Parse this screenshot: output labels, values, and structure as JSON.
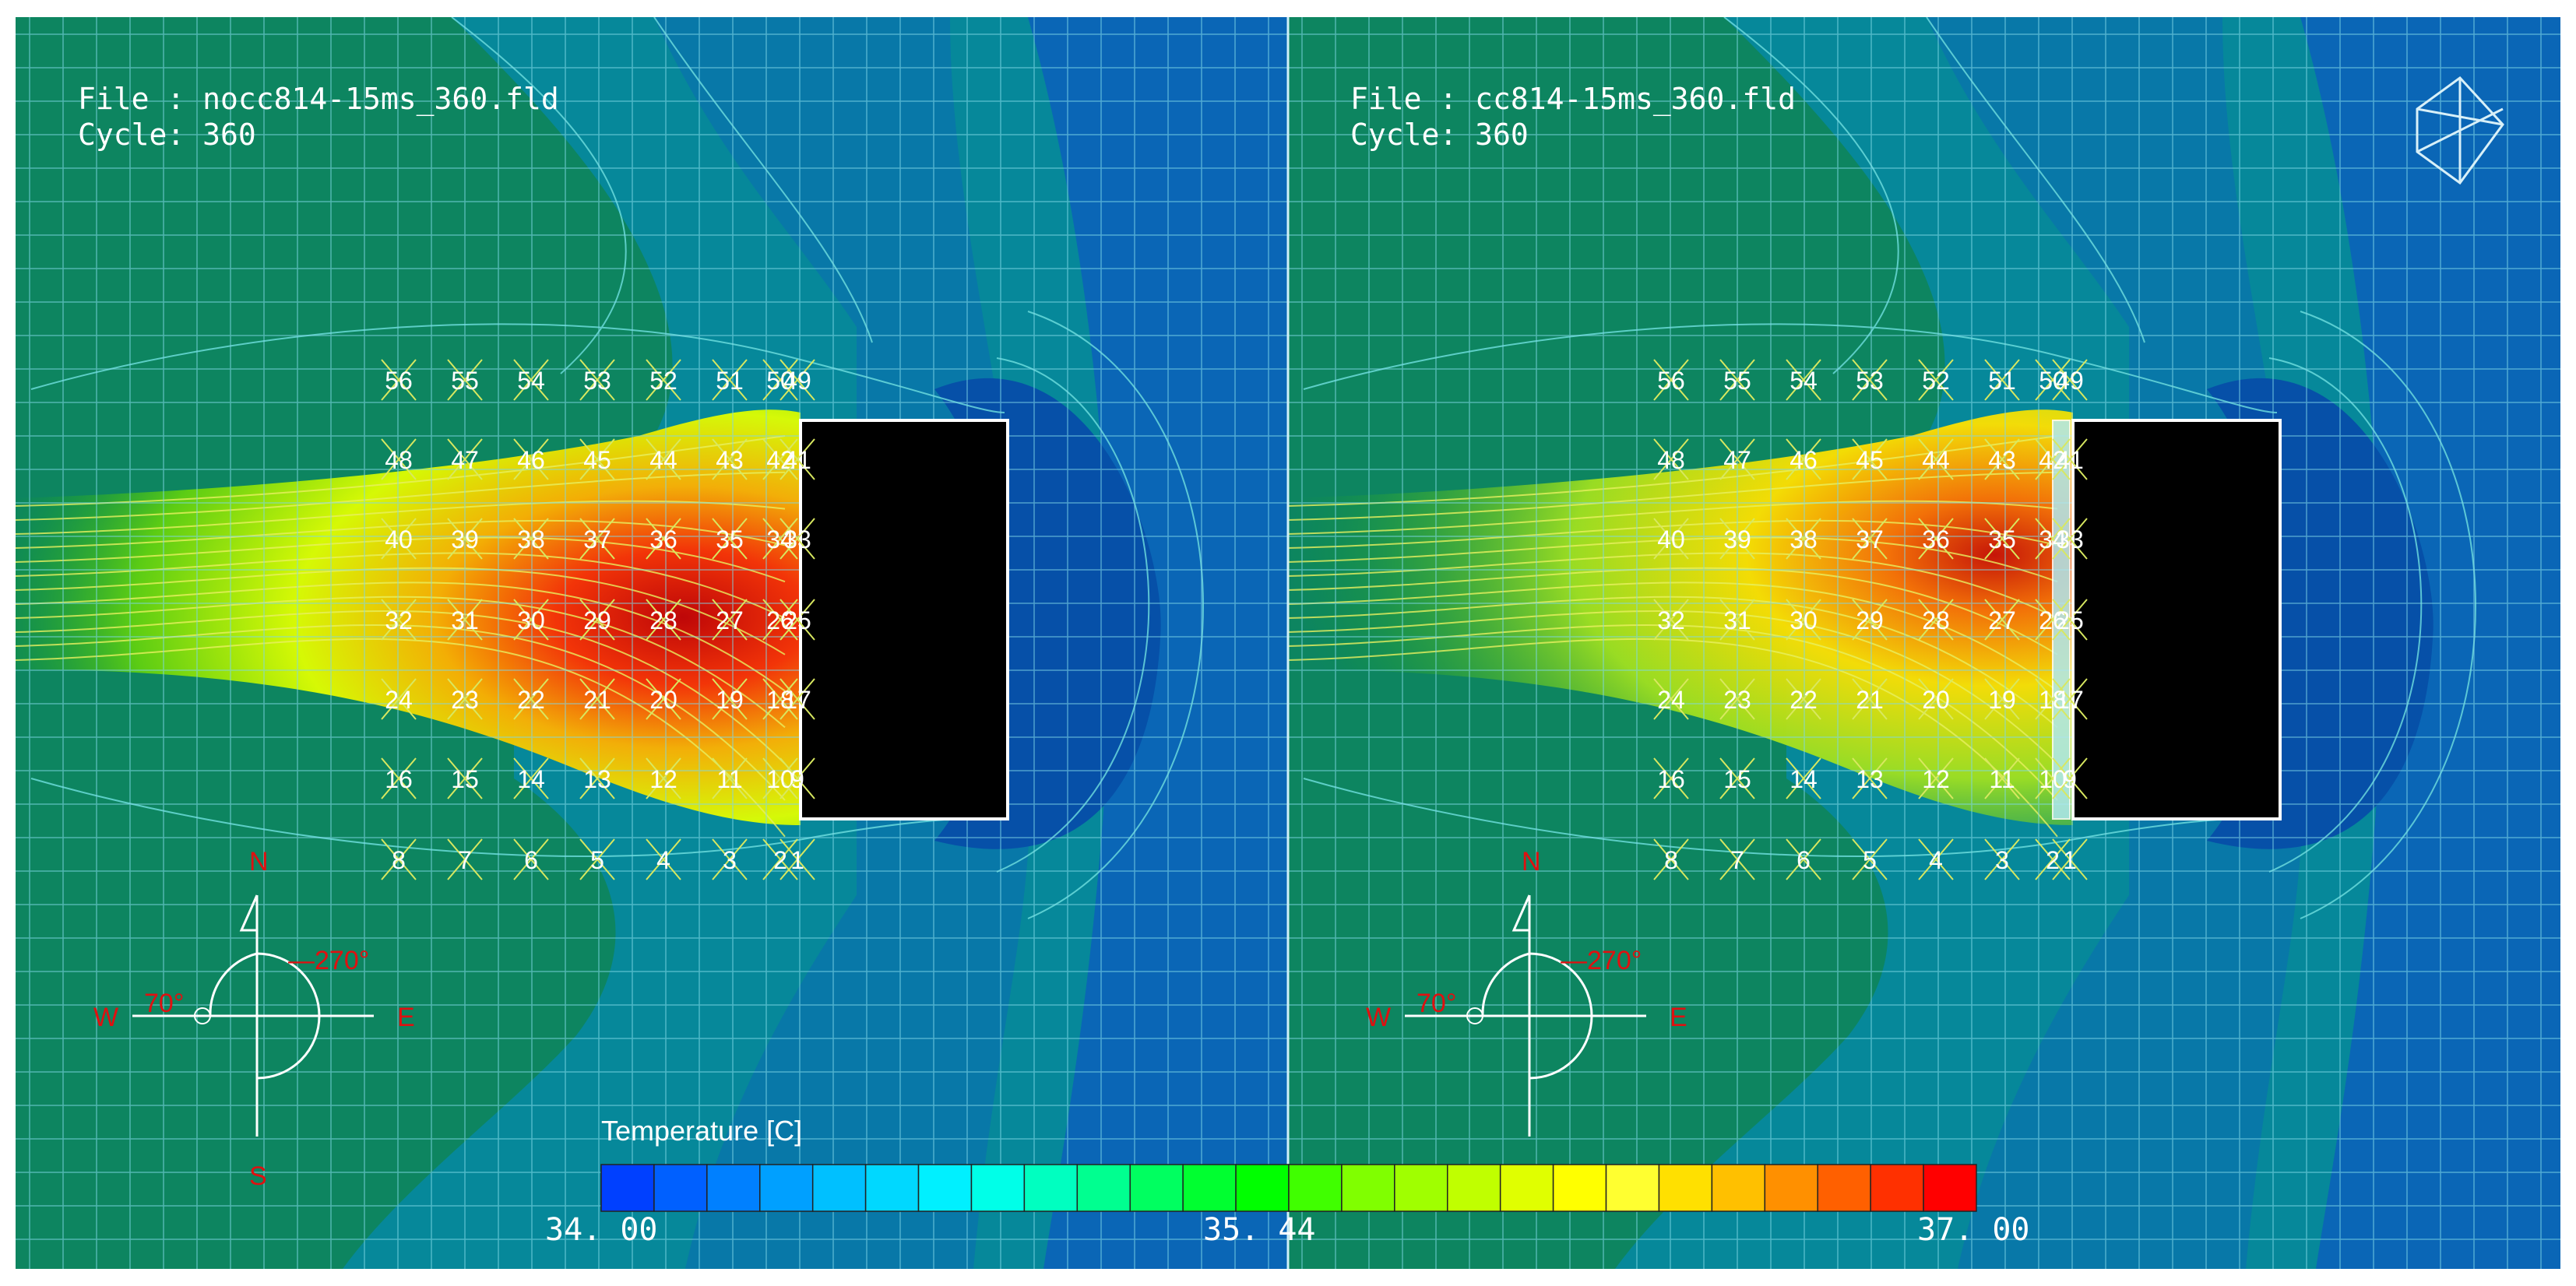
{
  "panels": [
    {
      "id": "left",
      "file_line": "File : nocc814-15ms_360.fld",
      "cycle_line": "Cycle: 360",
      "has_facade_layer": false,
      "has_axis_icon": false
    },
    {
      "id": "right",
      "file_line": "File : cc814-15ms_360.fld",
      "cycle_line": "Cycle: 360",
      "has_facade_layer": true,
      "has_axis_icon": true
    }
  ],
  "probe_grid": {
    "rows": [
      [
        "56",
        "55",
        "54",
        "53",
        "52",
        "51",
        "50",
        "49"
      ],
      [
        "48",
        "47",
        "46",
        "45",
        "44",
        "43",
        "42",
        "41"
      ],
      [
        "40",
        "39",
        "38",
        "37",
        "36",
        "35",
        "34",
        "33"
      ],
      [
        "32",
        "31",
        "30",
        "29",
        "28",
        "27",
        "26",
        "25"
      ],
      [
        "24",
        "23",
        "22",
        "21",
        "20",
        "19",
        "18",
        "17"
      ],
      [
        "16",
        "15",
        "14",
        "13",
        "12",
        "11",
        "10",
        "9"
      ],
      [
        "8",
        "7",
        "6",
        "5",
        "4",
        "3",
        "2",
        "1"
      ]
    ]
  },
  "compass": {
    "north": "N",
    "south": "S",
    "east": "E",
    "west": "W",
    "azimuth_label": "270°",
    "altitude_label": "70°"
  },
  "colorbar": {
    "title": "Temperature [C]",
    "min_label": "34. 00",
    "mid_label": "35. 44",
    "max_label": "37. 00",
    "min": 34.0,
    "max": 37.0,
    "colors": [
      "#0040ff",
      "#0060ff",
      "#0080ff",
      "#00a0ff",
      "#00c0ff",
      "#00d8ff",
      "#00f0ff",
      "#00ffe8",
      "#00ffc0",
      "#00ff90",
      "#00ff60",
      "#00ff30",
      "#00ff00",
      "#40ff00",
      "#80ff00",
      "#a0ff00",
      "#c0ff00",
      "#e0ff00",
      "#ffff00",
      "#ffff30",
      "#ffe000",
      "#ffc000",
      "#ff9000",
      "#ff6000",
      "#ff3000",
      "#ff0000"
    ]
  },
  "palette": {
    "field_green": "#0d8560",
    "field_teal": "#06889a",
    "field_blue": "#0a66b6",
    "field_deep_blue": "#0650a8",
    "grid_line": "#7fd8e8",
    "probe_mark": "#d8e860",
    "label_text": "#ffffff",
    "compass_red": "#e01010",
    "building": "#000000"
  }
}
